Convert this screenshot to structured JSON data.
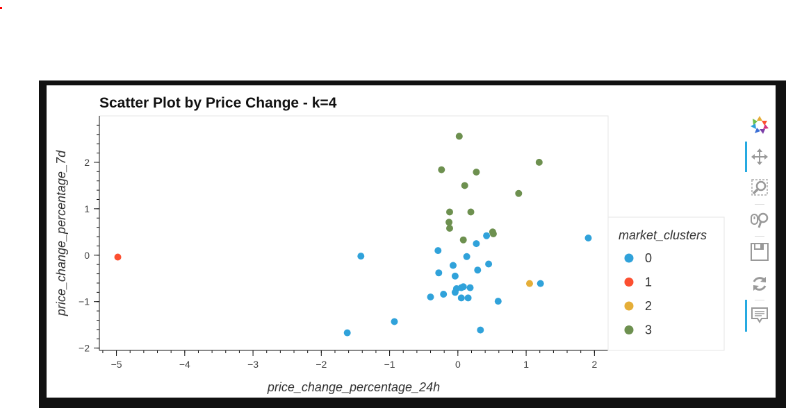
{
  "chart_data": {
    "type": "scatter",
    "title": "Scatter Plot by Price Change - k=4",
    "xlabel": "price_change_percentage_24h",
    "ylabel": "price_change_percentage_7d",
    "xlim": [
      -5.25,
      2.2
    ],
    "ylim": [
      -2.05,
      3.0
    ],
    "x_ticks": [
      -5,
      -4,
      -3,
      -2,
      -1,
      0,
      1,
      2
    ],
    "y_ticks": [
      -2,
      -1,
      0,
      1,
      2
    ],
    "grid": false,
    "legend": {
      "title": "market_clusters",
      "placement": "right",
      "entries": [
        "0",
        "1",
        "2",
        "3"
      ]
    },
    "series": [
      {
        "name": "0",
        "color": "#30a2da",
        "points": [
          [
            1.91,
            0.37
          ],
          [
            1.21,
            -0.61
          ],
          [
            0.42,
            0.42
          ],
          [
            0.27,
            0.25
          ],
          [
            0.13,
            -0.03
          ],
          [
            -0.29,
            0.1
          ],
          [
            -1.42,
            -0.02
          ],
          [
            0.45,
            -0.19
          ],
          [
            0.29,
            -0.32
          ],
          [
            -0.28,
            -0.38
          ],
          [
            -0.07,
            -0.22
          ],
          [
            -0.04,
            -0.45
          ],
          [
            0.05,
            -0.7
          ],
          [
            0.08,
            -0.68
          ],
          [
            0.18,
            -0.7
          ],
          [
            -0.02,
            -0.72
          ],
          [
            -0.04,
            -0.8
          ],
          [
            -0.21,
            -0.84
          ],
          [
            -0.4,
            -0.9
          ],
          [
            0.05,
            -0.92
          ],
          [
            0.15,
            -0.92
          ],
          [
            0.59,
            -0.99
          ],
          [
            -0.93,
            -1.43
          ],
          [
            0.33,
            -1.61
          ],
          [
            -1.62,
            -1.67
          ]
        ]
      },
      {
        "name": "1",
        "color": "#fc4f30",
        "points": [
          [
            -4.98,
            -0.04
          ]
        ]
      },
      {
        "name": "2",
        "color": "#e5ae38",
        "points": [
          [
            1.05,
            -0.61
          ]
        ]
      },
      {
        "name": "3",
        "color": "#6d904f",
        "points": [
          [
            0.02,
            2.56
          ],
          [
            1.19,
            2.0
          ],
          [
            -0.24,
            1.84
          ],
          [
            0.27,
            1.79
          ],
          [
            0.1,
            1.5
          ],
          [
            0.89,
            1.33
          ],
          [
            -0.12,
            0.93
          ],
          [
            0.19,
            0.93
          ],
          [
            -0.13,
            0.71
          ],
          [
            -0.12,
            0.58
          ],
          [
            0.51,
            0.5
          ],
          [
            0.52,
            0.46
          ],
          [
            0.08,
            0.33
          ]
        ]
      }
    ]
  },
  "toolbar": {
    "tools": [
      "bokeh-logo-icon",
      "pan-icon",
      "box-zoom-icon",
      "wheel-zoom-icon",
      "save-icon",
      "reset-icon",
      "hover-icon"
    ]
  }
}
